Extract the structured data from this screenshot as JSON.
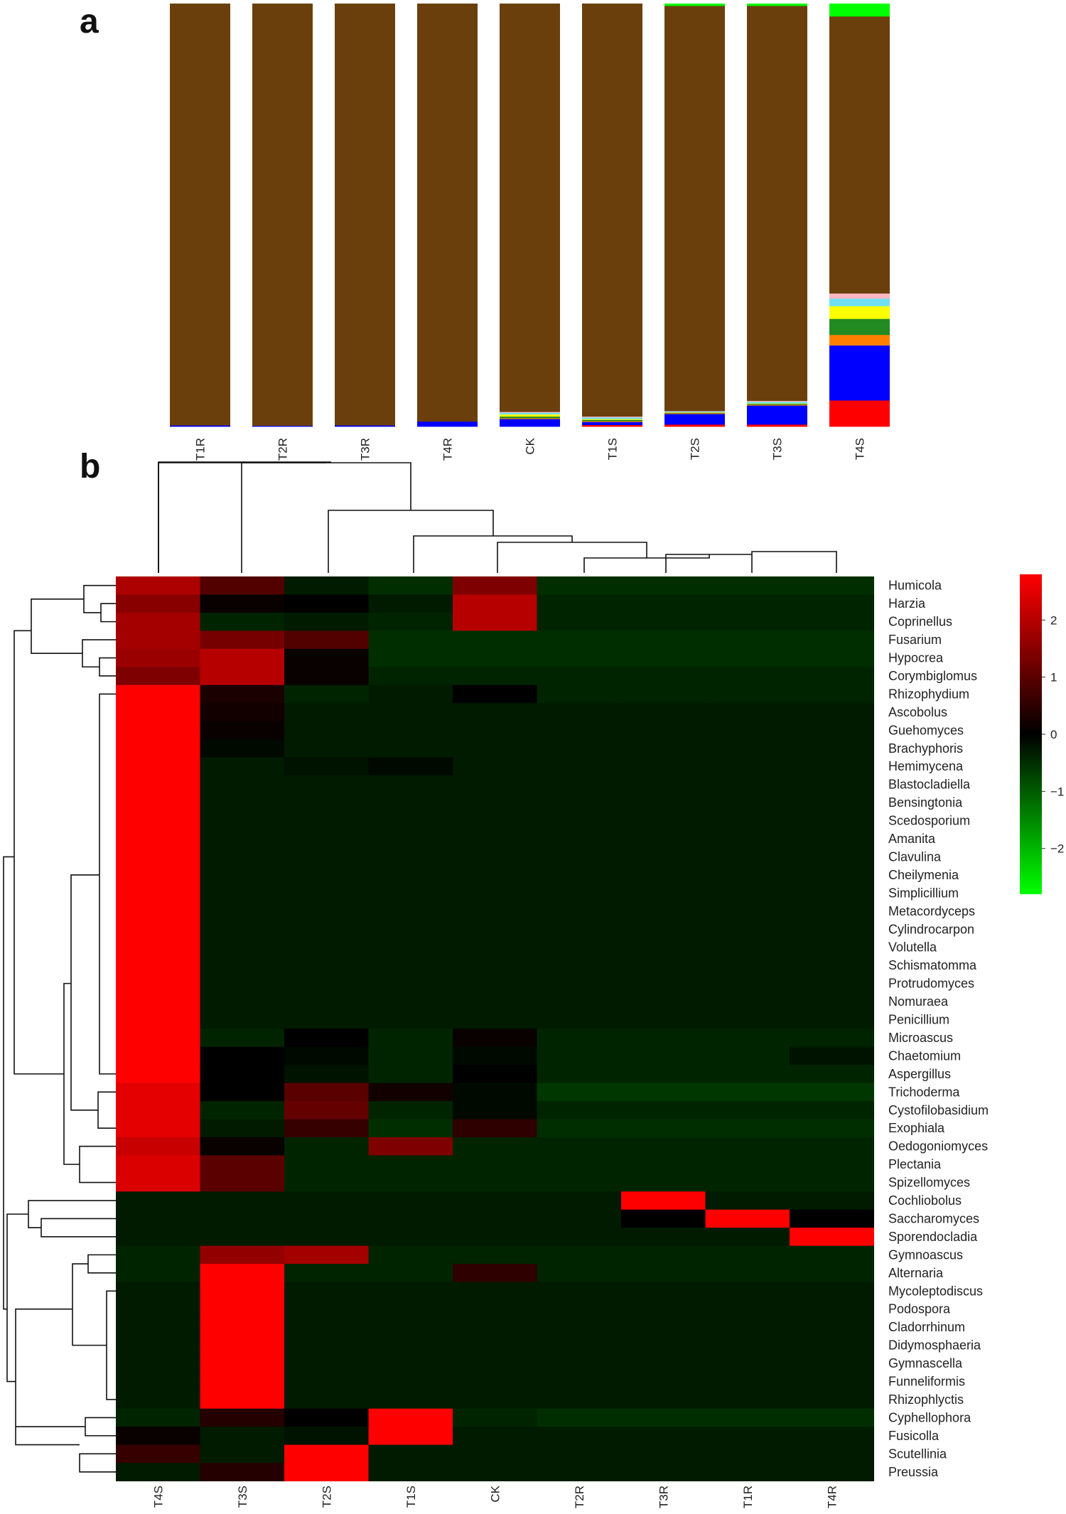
{
  "panel_labels": {
    "a": "a",
    "b": "b"
  },
  "chart_data": [
    {
      "type": "bar",
      "stacked": true,
      "panel": "a",
      "categories": [
        "T1R",
        "T2R",
        "T3R",
        "T4R",
        "CK",
        "T1S",
        "T2S",
        "T3S",
        "T4S"
      ],
      "series": [
        {
          "color": "#ff0000",
          "values": [
            0.0,
            0.0,
            0.0,
            0.0,
            0.0,
            0.004,
            0.005,
            0.005,
            0.062
          ]
        },
        {
          "color": "#0000ff",
          "values": [
            0.003,
            0.002,
            0.003,
            0.012,
            0.018,
            0.007,
            0.025,
            0.045,
            0.13
          ]
        },
        {
          "color": "#ff8000",
          "values": [
            0.0,
            0.0,
            0.0,
            0.0,
            0.002,
            0.002,
            0.002,
            0.002,
            0.025
          ]
        },
        {
          "color": "#228b22",
          "values": [
            0.0,
            0.0,
            0.0,
            0.0,
            0.004,
            0.003,
            0.001,
            0.002,
            0.038
          ]
        },
        {
          "color": "#ffff00",
          "values": [
            0.0,
            0.0,
            0.0,
            0.0,
            0.005,
            0.002,
            0.001,
            0.001,
            0.03
          ]
        },
        {
          "color": "#70e0f0",
          "values": [
            0.0,
            0.0,
            0.0,
            0.0,
            0.004,
            0.004,
            0.002,
            0.004,
            0.018
          ]
        },
        {
          "color": "#ffb6c1",
          "values": [
            0.0,
            0.0,
            0.0,
            0.0,
            0.002,
            0.002,
            0.001,
            0.002,
            0.012
          ]
        },
        {
          "color": "#6b3f0c",
          "values": [
            0.997,
            0.998,
            0.997,
            0.988,
            0.965,
            0.976,
            0.958,
            0.934,
            0.655
          ]
        },
        {
          "color": "#00ff00",
          "values": [
            0.0,
            0.0,
            0.0,
            0.0,
            0.0,
            0.0,
            0.005,
            0.005,
            0.03
          ]
        }
      ]
    },
    {
      "type": "heatmap",
      "panel": "b",
      "columns": [
        "T4S",
        "T3S",
        "T2S",
        "T1S",
        "CK",
        "T2R",
        "T3R",
        "T1R",
        "T4R"
      ],
      "rows": [
        "Humicola",
        "Harzia",
        "Coprinellus",
        "Fusarium",
        "Hypocrea",
        "Corymbiglomus",
        "Rhizophydium",
        "Ascobolus",
        "Guehomyces",
        "Brachyphoris",
        "Hemimycena",
        "Blastocladiella",
        "Bensingtonia",
        "Scedosporium",
        "Amanita",
        "Clavulina",
        "Cheilymenia",
        "Simplicillium",
        "Metacordyceps",
        "Cylindrocarpon",
        "Volutella",
        "Schismatomma",
        "Protrudomyces",
        "Nomuraea",
        "Penicillium",
        "Microascus",
        "Chaetomium",
        "Aspergillus",
        "Trichoderma",
        "Cystofilobasidium",
        "Exophiala",
        "Oedogoniomyces",
        "Plectania",
        "Spizellomyces",
        "Cochliobolus",
        "Saccharomyces",
        "Sporendocladia",
        "Gymnoascus",
        "Alternaria",
        "Mycoleptodiscus",
        "Podospora",
        "Cladorrhinum",
        "Didymosphaeria",
        "Gymnascella",
        "Funneliformis",
        "Rhizophlyctis",
        "Cyphellophora",
        "Fusicolla",
        "Scutellinia",
        "Preussia"
      ],
      "values": [
        [
          1.9,
          0.9,
          -0.3,
          -0.5,
          1.4,
          -0.5,
          -0.5,
          -0.5,
          -0.5
        ],
        [
          1.5,
          0.1,
          0.0,
          -0.3,
          2.0,
          -0.4,
          -0.4,
          -0.4,
          -0.4
        ],
        [
          1.8,
          -0.4,
          -0.3,
          -0.4,
          2.0,
          -0.4,
          -0.4,
          -0.4,
          -0.4
        ],
        [
          1.8,
          1.3,
          0.9,
          -0.5,
          -0.5,
          -0.5,
          -0.5,
          -0.5,
          -0.5
        ],
        [
          1.7,
          2.0,
          0.1,
          -0.5,
          -0.5,
          -0.5,
          -0.5,
          -0.5,
          -0.5
        ],
        [
          1.4,
          2.0,
          0.1,
          -0.4,
          -0.4,
          -0.4,
          -0.4,
          -0.4,
          -0.4
        ],
        [
          2.8,
          0.3,
          -0.4,
          -0.3,
          0.0,
          -0.4,
          -0.4,
          -0.4,
          -0.4
        ],
        [
          2.8,
          0.2,
          -0.3,
          -0.3,
          -0.3,
          -0.3,
          -0.3,
          -0.3,
          -0.3
        ],
        [
          2.8,
          0.1,
          -0.3,
          -0.3,
          -0.3,
          -0.3,
          -0.3,
          -0.3,
          -0.3
        ],
        [
          2.8,
          -0.1,
          -0.3,
          -0.3,
          -0.3,
          -0.3,
          -0.3,
          -0.3,
          -0.3
        ],
        [
          2.8,
          -0.3,
          -0.2,
          -0.1,
          -0.3,
          -0.3,
          -0.3,
          -0.3,
          -0.3
        ],
        [
          2.8,
          -0.3,
          -0.3,
          -0.3,
          -0.3,
          -0.3,
          -0.3,
          -0.3,
          -0.3
        ],
        [
          2.8,
          -0.3,
          -0.3,
          -0.3,
          -0.3,
          -0.3,
          -0.3,
          -0.3,
          -0.3
        ],
        [
          2.8,
          -0.3,
          -0.3,
          -0.3,
          -0.3,
          -0.3,
          -0.3,
          -0.3,
          -0.3
        ],
        [
          2.8,
          -0.3,
          -0.3,
          -0.3,
          -0.3,
          -0.3,
          -0.3,
          -0.3,
          -0.3
        ],
        [
          2.8,
          -0.3,
          -0.3,
          -0.3,
          -0.3,
          -0.3,
          -0.3,
          -0.3,
          -0.3
        ],
        [
          2.8,
          -0.3,
          -0.3,
          -0.3,
          -0.3,
          -0.3,
          -0.3,
          -0.3,
          -0.3
        ],
        [
          2.8,
          -0.3,
          -0.3,
          -0.3,
          -0.3,
          -0.3,
          -0.3,
          -0.3,
          -0.3
        ],
        [
          2.8,
          -0.3,
          -0.3,
          -0.3,
          -0.3,
          -0.3,
          -0.3,
          -0.3,
          -0.3
        ],
        [
          2.8,
          -0.3,
          -0.3,
          -0.3,
          -0.3,
          -0.3,
          -0.3,
          -0.3,
          -0.3
        ],
        [
          2.8,
          -0.3,
          -0.3,
          -0.3,
          -0.3,
          -0.3,
          -0.3,
          -0.3,
          -0.3
        ],
        [
          2.8,
          -0.3,
          -0.3,
          -0.3,
          -0.3,
          -0.3,
          -0.3,
          -0.3,
          -0.3
        ],
        [
          2.8,
          -0.3,
          -0.3,
          -0.3,
          -0.3,
          -0.3,
          -0.3,
          -0.3,
          -0.3
        ],
        [
          2.8,
          -0.3,
          -0.3,
          -0.3,
          -0.3,
          -0.3,
          -0.3,
          -0.3,
          -0.3
        ],
        [
          2.8,
          -0.3,
          -0.3,
          -0.3,
          -0.3,
          -0.3,
          -0.3,
          -0.3,
          -0.3
        ],
        [
          2.8,
          -0.4,
          0.0,
          -0.4,
          0.1,
          -0.4,
          -0.4,
          -0.4,
          -0.4
        ],
        [
          2.8,
          0.0,
          -0.1,
          -0.4,
          -0.1,
          -0.4,
          -0.4,
          -0.4,
          -0.2
        ],
        [
          2.8,
          0.0,
          -0.2,
          -0.4,
          0.0,
          -0.4,
          -0.4,
          -0.4,
          -0.4
        ],
        [
          2.5,
          0.0,
          1.0,
          0.2,
          -0.1,
          -0.6,
          -0.6,
          -0.6,
          -0.6
        ],
        [
          2.5,
          -0.4,
          1.1,
          -0.4,
          -0.1,
          -0.4,
          -0.4,
          -0.4,
          -0.4
        ],
        [
          2.5,
          -0.3,
          0.6,
          -0.5,
          0.5,
          -0.5,
          -0.5,
          -0.5,
          -0.5
        ],
        [
          2.2,
          0.1,
          -0.4,
          1.4,
          -0.4,
          -0.4,
          -0.4,
          -0.4,
          -0.4
        ],
        [
          2.4,
          1.0,
          -0.4,
          -0.4,
          -0.4,
          -0.4,
          -0.4,
          -0.4,
          -0.4
        ],
        [
          2.4,
          1.0,
          -0.4,
          -0.4,
          -0.4,
          -0.4,
          -0.4,
          -0.4,
          -0.4
        ],
        [
          -0.3,
          -0.3,
          -0.3,
          -0.3,
          -0.3,
          -0.3,
          2.8,
          -0.3,
          -0.3
        ],
        [
          -0.3,
          -0.3,
          -0.3,
          -0.3,
          -0.3,
          -0.3,
          0.0,
          2.8,
          0.0
        ],
        [
          -0.3,
          -0.3,
          -0.3,
          -0.3,
          -0.3,
          -0.3,
          -0.3,
          -0.3,
          2.8
        ],
        [
          -0.4,
          1.6,
          1.8,
          -0.4,
          -0.4,
          -0.4,
          -0.4,
          -0.4,
          -0.4
        ],
        [
          -0.4,
          2.8,
          -0.4,
          -0.4,
          0.5,
          -0.4,
          -0.4,
          -0.4,
          -0.4
        ],
        [
          -0.3,
          2.8,
          -0.3,
          -0.3,
          -0.3,
          -0.3,
          -0.3,
          -0.3,
          -0.3
        ],
        [
          -0.3,
          2.8,
          -0.3,
          -0.3,
          -0.3,
          -0.3,
          -0.3,
          -0.3,
          -0.3
        ],
        [
          -0.3,
          2.8,
          -0.3,
          -0.3,
          -0.3,
          -0.3,
          -0.3,
          -0.3,
          -0.3
        ],
        [
          -0.3,
          2.8,
          -0.3,
          -0.3,
          -0.3,
          -0.3,
          -0.3,
          -0.3,
          -0.3
        ],
        [
          -0.3,
          2.8,
          -0.3,
          -0.3,
          -0.3,
          -0.3,
          -0.3,
          -0.3,
          -0.3
        ],
        [
          -0.3,
          2.8,
          -0.3,
          -0.3,
          -0.3,
          -0.3,
          -0.3,
          -0.3,
          -0.3
        ],
        [
          -0.3,
          2.8,
          -0.3,
          -0.3,
          -0.3,
          -0.3,
          -0.3,
          -0.3,
          -0.3
        ],
        [
          -0.4,
          0.4,
          0.0,
          2.8,
          -0.4,
          -0.5,
          -0.5,
          -0.5,
          -0.5
        ],
        [
          0.1,
          -0.3,
          -0.2,
          2.8,
          -0.3,
          -0.3,
          -0.3,
          -0.3,
          -0.3
        ],
        [
          0.6,
          -0.3,
          2.8,
          -0.3,
          -0.3,
          -0.3,
          -0.3,
          -0.3,
          -0.3
        ],
        [
          -0.3,
          0.4,
          2.8,
          -0.3,
          -0.3,
          -0.3,
          -0.3,
          -0.3,
          -0.3
        ]
      ],
      "legend": {
        "ticks": [
          2,
          1,
          0,
          -1,
          -2
        ],
        "tick_labels": [
          "2",
          "1",
          "0",
          "−1",
          "−2"
        ],
        "range": [
          -2.8,
          2.8
        ],
        "colors": {
          "low": "#00ff00",
          "mid": "#000000",
          "high": "#ff0000"
        }
      }
    }
  ]
}
